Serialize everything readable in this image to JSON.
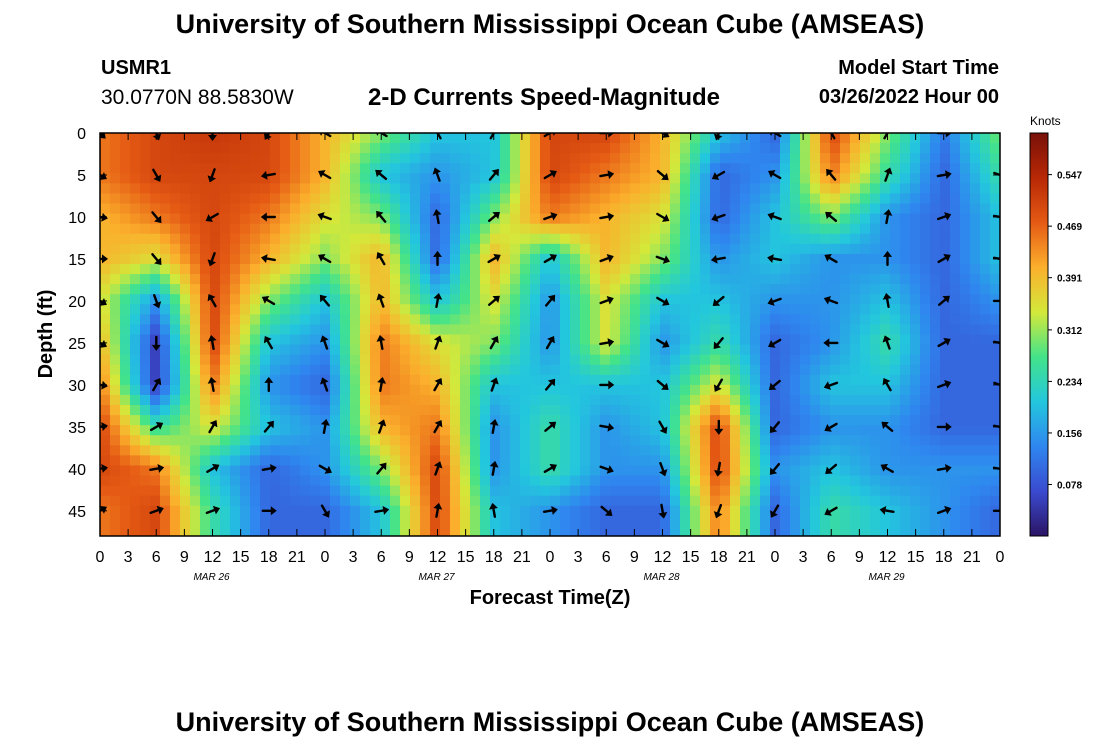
{
  "header": {
    "title": "University of Southern Mississippi Ocean Cube (AMSEAS)",
    "station_id": "USMR1",
    "station_coords": "30.0770N  88.5830W",
    "chart_title": "2-D Currents Speed-Magnitude",
    "model_start_label": "Model Start Time",
    "model_start_value": "03/26/2022 Hour 00"
  },
  "footer": {
    "title": "University of Southern Mississippi Ocean Cube (AMSEAS)"
  },
  "colors": {
    "colormap": [
      "#2b1464",
      "#3a4bd0",
      "#2f86ef",
      "#23c7dd",
      "#43e38a",
      "#d4e83a",
      "#fbaf2c",
      "#e55a14",
      "#b82806",
      "#781008"
    ],
    "arrow": "#000000"
  },
  "chart_data": {
    "type": "heatmap",
    "title": "2-D Currents Speed-Magnitude",
    "xlabel": "Forecast Time(Z)",
    "ylabel": "Depth (ft)",
    "x_tick_labels": [
      "0",
      "3",
      "6",
      "9",
      "12",
      "15",
      "18",
      "21",
      "0",
      "3",
      "6",
      "9",
      "12",
      "15",
      "18",
      "21",
      "0",
      "3",
      "6",
      "9",
      "12",
      "15",
      "18",
      "21",
      "0",
      "3",
      "6",
      "9",
      "12",
      "15",
      "18",
      "21",
      "0"
    ],
    "date_labels": [
      "MAR 26",
      "MAR 27",
      "MAR 28",
      "MAR 29"
    ],
    "y_ticks": [
      0,
      5,
      10,
      15,
      20,
      25,
      30,
      35,
      40,
      45
    ],
    "ylim": [
      48,
      0
    ],
    "xlim_hours": [
      0,
      96
    ],
    "colorbar": {
      "unit": "Knots",
      "ticks": [
        0.547,
        0.469,
        0.391,
        0.312,
        0.234,
        0.156,
        0.078
      ],
      "range": [
        0.0,
        0.61
      ]
    },
    "depths_ft": [
      0,
      5,
      10,
      15,
      20,
      25,
      30,
      35,
      40,
      45
    ],
    "hours": [
      0,
      6,
      12,
      18,
      24,
      30,
      36,
      42,
      48,
      54,
      60,
      66,
      72,
      78,
      84,
      90,
      96
    ],
    "speed_knots": [
      [
        0.45,
        0.5,
        0.52,
        0.5,
        0.4,
        0.3,
        0.2,
        0.2,
        0.5,
        0.5,
        0.4,
        0.2,
        0.1,
        0.5,
        0.3,
        0.12,
        0.3
      ],
      [
        0.45,
        0.5,
        0.5,
        0.5,
        0.4,
        0.2,
        0.15,
        0.2,
        0.5,
        0.45,
        0.4,
        0.1,
        0.15,
        0.45,
        0.25,
        0.1,
        0.25
      ],
      [
        0.4,
        0.45,
        0.5,
        0.45,
        0.35,
        0.3,
        0.1,
        0.3,
        0.45,
        0.4,
        0.35,
        0.1,
        0.2,
        0.3,
        0.15,
        0.1,
        0.2
      ],
      [
        0.4,
        0.35,
        0.5,
        0.4,
        0.3,
        0.4,
        0.1,
        0.4,
        0.2,
        0.4,
        0.3,
        0.15,
        0.2,
        0.15,
        0.15,
        0.1,
        0.2
      ],
      [
        0.35,
        0.15,
        0.5,
        0.3,
        0.2,
        0.4,
        0.2,
        0.35,
        0.15,
        0.35,
        0.2,
        0.2,
        0.15,
        0.15,
        0.2,
        0.1,
        0.15
      ],
      [
        0.4,
        0.05,
        0.5,
        0.2,
        0.15,
        0.45,
        0.35,
        0.3,
        0.15,
        0.35,
        0.15,
        0.25,
        0.1,
        0.15,
        0.25,
        0.1,
        0.1
      ],
      [
        0.45,
        0.05,
        0.45,
        0.15,
        0.1,
        0.45,
        0.4,
        0.2,
        0.2,
        0.2,
        0.2,
        0.35,
        0.1,
        0.2,
        0.2,
        0.1,
        0.1
      ],
      [
        0.5,
        0.25,
        0.35,
        0.2,
        0.15,
        0.4,
        0.45,
        0.15,
        0.25,
        0.15,
        0.2,
        0.5,
        0.1,
        0.15,
        0.15,
        0.1,
        0.1
      ],
      [
        0.5,
        0.45,
        0.2,
        0.1,
        0.15,
        0.3,
        0.5,
        0.15,
        0.25,
        0.15,
        0.15,
        0.5,
        0.15,
        0.2,
        0.15,
        0.15,
        0.15
      ],
      [
        0.45,
        0.5,
        0.25,
        0.1,
        0.1,
        0.2,
        0.5,
        0.2,
        0.15,
        0.1,
        0.1,
        0.45,
        0.1,
        0.25,
        0.2,
        0.15,
        0.1
      ]
    ],
    "direction_deg": [
      [
        135,
        160,
        180,
        210,
        300,
        300,
        330,
        30,
        60,
        90,
        120,
        200,
        300,
        330,
        30,
        90,
        120
      ],
      [
        120,
        150,
        200,
        260,
        300,
        310,
        340,
        40,
        60,
        80,
        130,
        240,
        300,
        320,
        20,
        80,
        110
      ],
      [
        100,
        140,
        240,
        270,
        290,
        320,
        350,
        50,
        70,
        80,
        120,
        250,
        290,
        310,
        10,
        70,
        100
      ],
      [
        90,
        140,
        200,
        280,
        300,
        330,
        0,
        60,
        60,
        70,
        110,
        260,
        280,
        300,
        0,
        60,
        100
      ],
      [
        120,
        160,
        330,
        300,
        320,
        340,
        10,
        50,
        40,
        70,
        120,
        230,
        250,
        290,
        350,
        50,
        90
      ],
      [
        120,
        180,
        350,
        330,
        340,
        350,
        20,
        30,
        30,
        80,
        120,
        220,
        240,
        270,
        340,
        60,
        100
      ],
      [
        100,
        30,
        350,
        0,
        340,
        10,
        30,
        20,
        40,
        90,
        130,
        210,
        230,
        250,
        330,
        70,
        110
      ],
      [
        80,
        60,
        30,
        40,
        10,
        20,
        30,
        10,
        50,
        100,
        150,
        180,
        220,
        240,
        310,
        90,
        100
      ],
      [
        80,
        80,
        60,
        80,
        120,
        40,
        20,
        10,
        60,
        110,
        160,
        190,
        220,
        230,
        300,
        80,
        100
      ],
      [
        60,
        70,
        70,
        90,
        150,
        80,
        10,
        350,
        80,
        130,
        170,
        200,
        210,
        240,
        280,
        70,
        90
      ]
    ]
  }
}
